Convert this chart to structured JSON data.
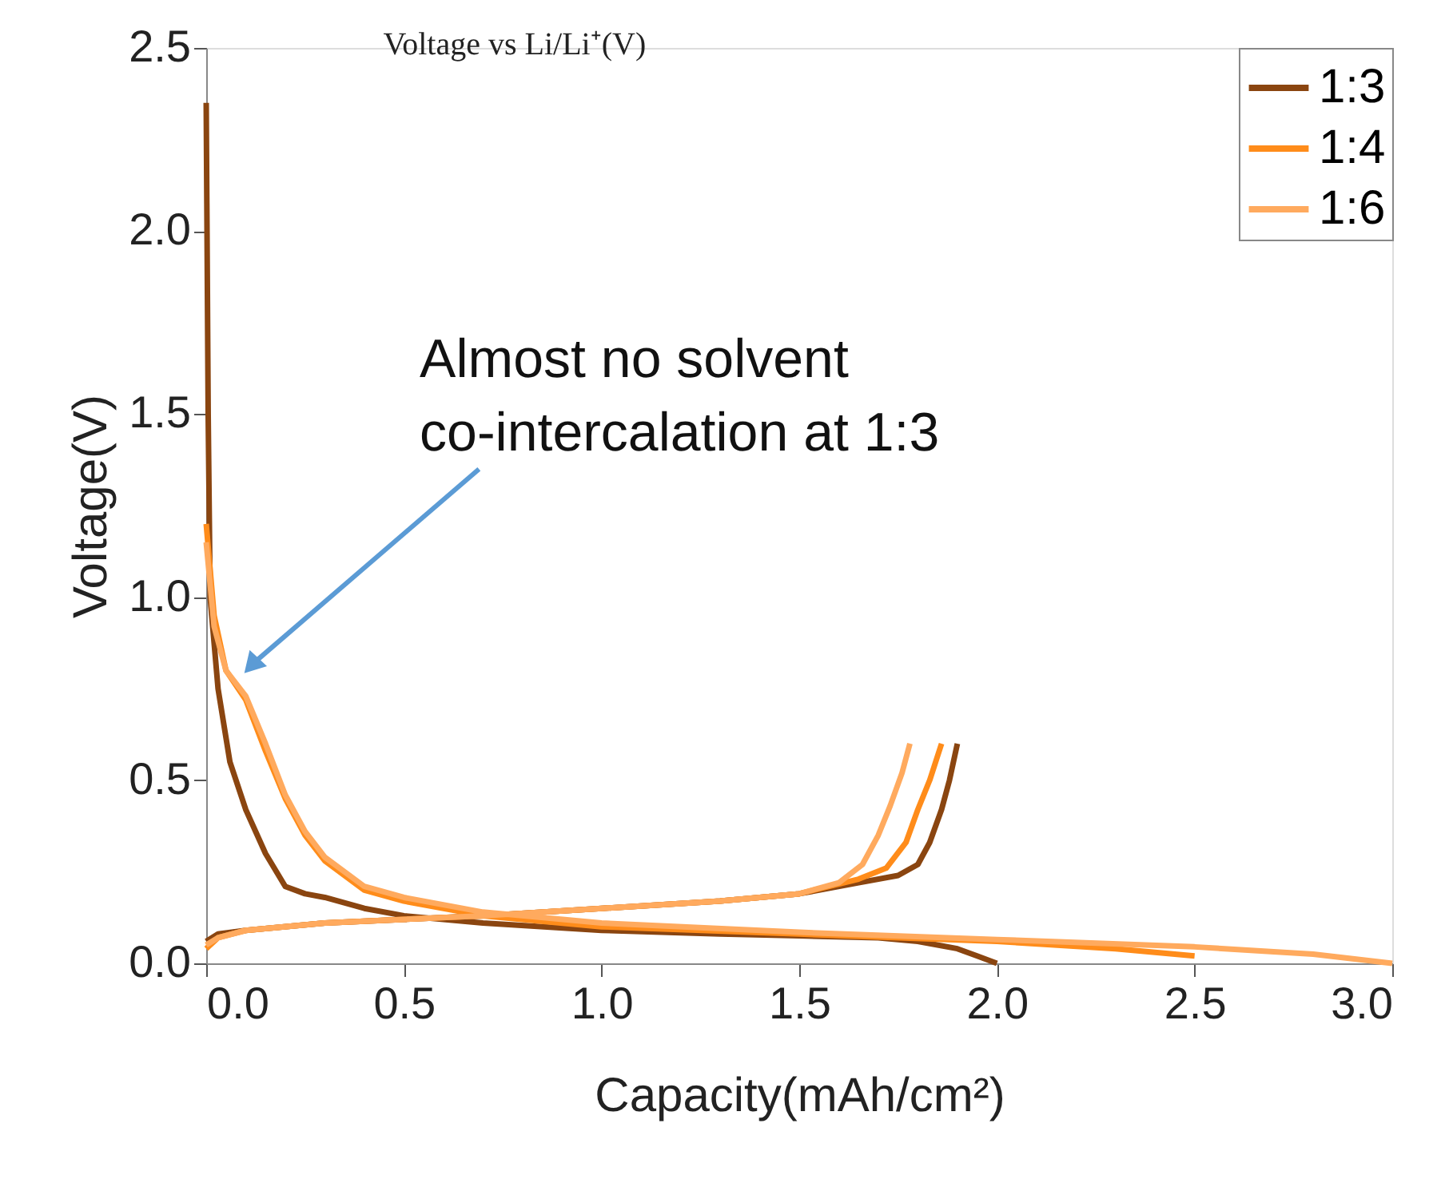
{
  "chart_data": {
    "type": "line",
    "xlabel": "Capacity(mAh/cm²)",
    "ylabel": "Voltage(V)",
    "xlim": [
      0,
      3.0
    ],
    "xticks": [
      {
        "value": 0,
        "label": "0.0"
      },
      0.5,
      {
        "value": 1,
        "label": "1.0"
      },
      1.5,
      {
        "value": 2,
        "label": "2.0"
      },
      2.5,
      {
        "value": 3,
        "label": "3.0"
      }
    ],
    "ylim": [
      0,
      2.5
    ],
    "yticks": [
      {
        "value": 0,
        "label": "0.0"
      },
      0.5,
      {
        "value": 1,
        "label": "1.0"
      },
      1.5,
      {
        "value": 2,
        "label": "2.0"
      },
      2.5
    ],
    "grid": false,
    "legend": "top right",
    "marker": "none",
    "line_style": "solid",
    "series": [
      {
        "name": "1:3",
        "color": "#8a4510",
        "x": [
          0,
          0.005,
          0.01,
          0.03,
          0.06,
          0.1,
          0.15,
          0.2,
          0.25,
          0.3,
          0.4,
          0.5,
          0.7,
          1.0,
          1.3,
          1.5,
          1.7,
          1.8,
          1.9,
          1.95,
          2.0,
          null,
          0,
          0.03,
          0.1,
          0.3,
          0.5,
          0.7,
          1.0,
          1.3,
          1.5,
          1.65,
          1.75,
          1.8,
          1.83,
          1.86,
          1.88,
          1.9
        ],
        "values": [
          2.35,
          1.5,
          1.0,
          0.75,
          0.55,
          0.42,
          0.3,
          0.21,
          0.19,
          0.18,
          0.15,
          0.13,
          0.11,
          0.09,
          0.08,
          0.075,
          0.07,
          0.06,
          0.04,
          0.02,
          0.0,
          null,
          0.06,
          0.08,
          0.09,
          0.11,
          0.12,
          0.13,
          0.15,
          0.17,
          0.19,
          0.22,
          0.24,
          0.27,
          0.33,
          0.42,
          0.5,
          0.6
        ]
      },
      {
        "name": "1:4",
        "color": "#ff8c1a",
        "x": [
          0,
          0.02,
          0.05,
          0.1,
          0.15,
          0.2,
          0.25,
          0.3,
          0.4,
          0.5,
          0.7,
          1.0,
          1.5,
          2.0,
          2.3,
          2.5,
          null,
          0,
          0.03,
          0.1,
          0.3,
          0.5,
          0.7,
          1.0,
          1.3,
          1.5,
          1.65,
          1.72,
          1.77,
          1.8,
          1.83,
          1.86
        ],
        "values": [
          1.2,
          0.95,
          0.8,
          0.72,
          0.58,
          0.45,
          0.35,
          0.28,
          0.2,
          0.17,
          0.13,
          0.1,
          0.08,
          0.06,
          0.04,
          0.02,
          null,
          0.04,
          0.07,
          0.09,
          0.11,
          0.12,
          0.13,
          0.15,
          0.17,
          0.19,
          0.23,
          0.26,
          0.33,
          0.42,
          0.5,
          0.6
        ]
      },
      {
        "name": "1:6",
        "color": "#ffaa5e",
        "x": [
          0,
          0.02,
          0.05,
          0.1,
          0.15,
          0.2,
          0.25,
          0.3,
          0.4,
          0.5,
          0.7,
          1.0,
          1.5,
          2.0,
          2.5,
          2.8,
          3.0,
          null,
          0,
          0.03,
          0.1,
          0.3,
          0.5,
          0.7,
          1.0,
          1.3,
          1.5,
          1.6,
          1.66,
          1.7,
          1.73,
          1.76,
          1.78
        ],
        "values": [
          1.15,
          0.92,
          0.8,
          0.73,
          0.6,
          0.46,
          0.36,
          0.29,
          0.21,
          0.18,
          0.14,
          0.11,
          0.085,
          0.065,
          0.045,
          0.025,
          0.0,
          null,
          0.05,
          0.07,
          0.09,
          0.11,
          0.12,
          0.13,
          0.15,
          0.17,
          0.19,
          0.22,
          0.27,
          0.35,
          0.43,
          0.52,
          0.6
        ]
      }
    ],
    "annotations": [
      {
        "text": "Almost no solvent co-intercalation at 1:3",
        "x": 0.12,
        "y": 0.82
      },
      "Voltage vs Li/Li⁺(V)"
    ]
  }
}
